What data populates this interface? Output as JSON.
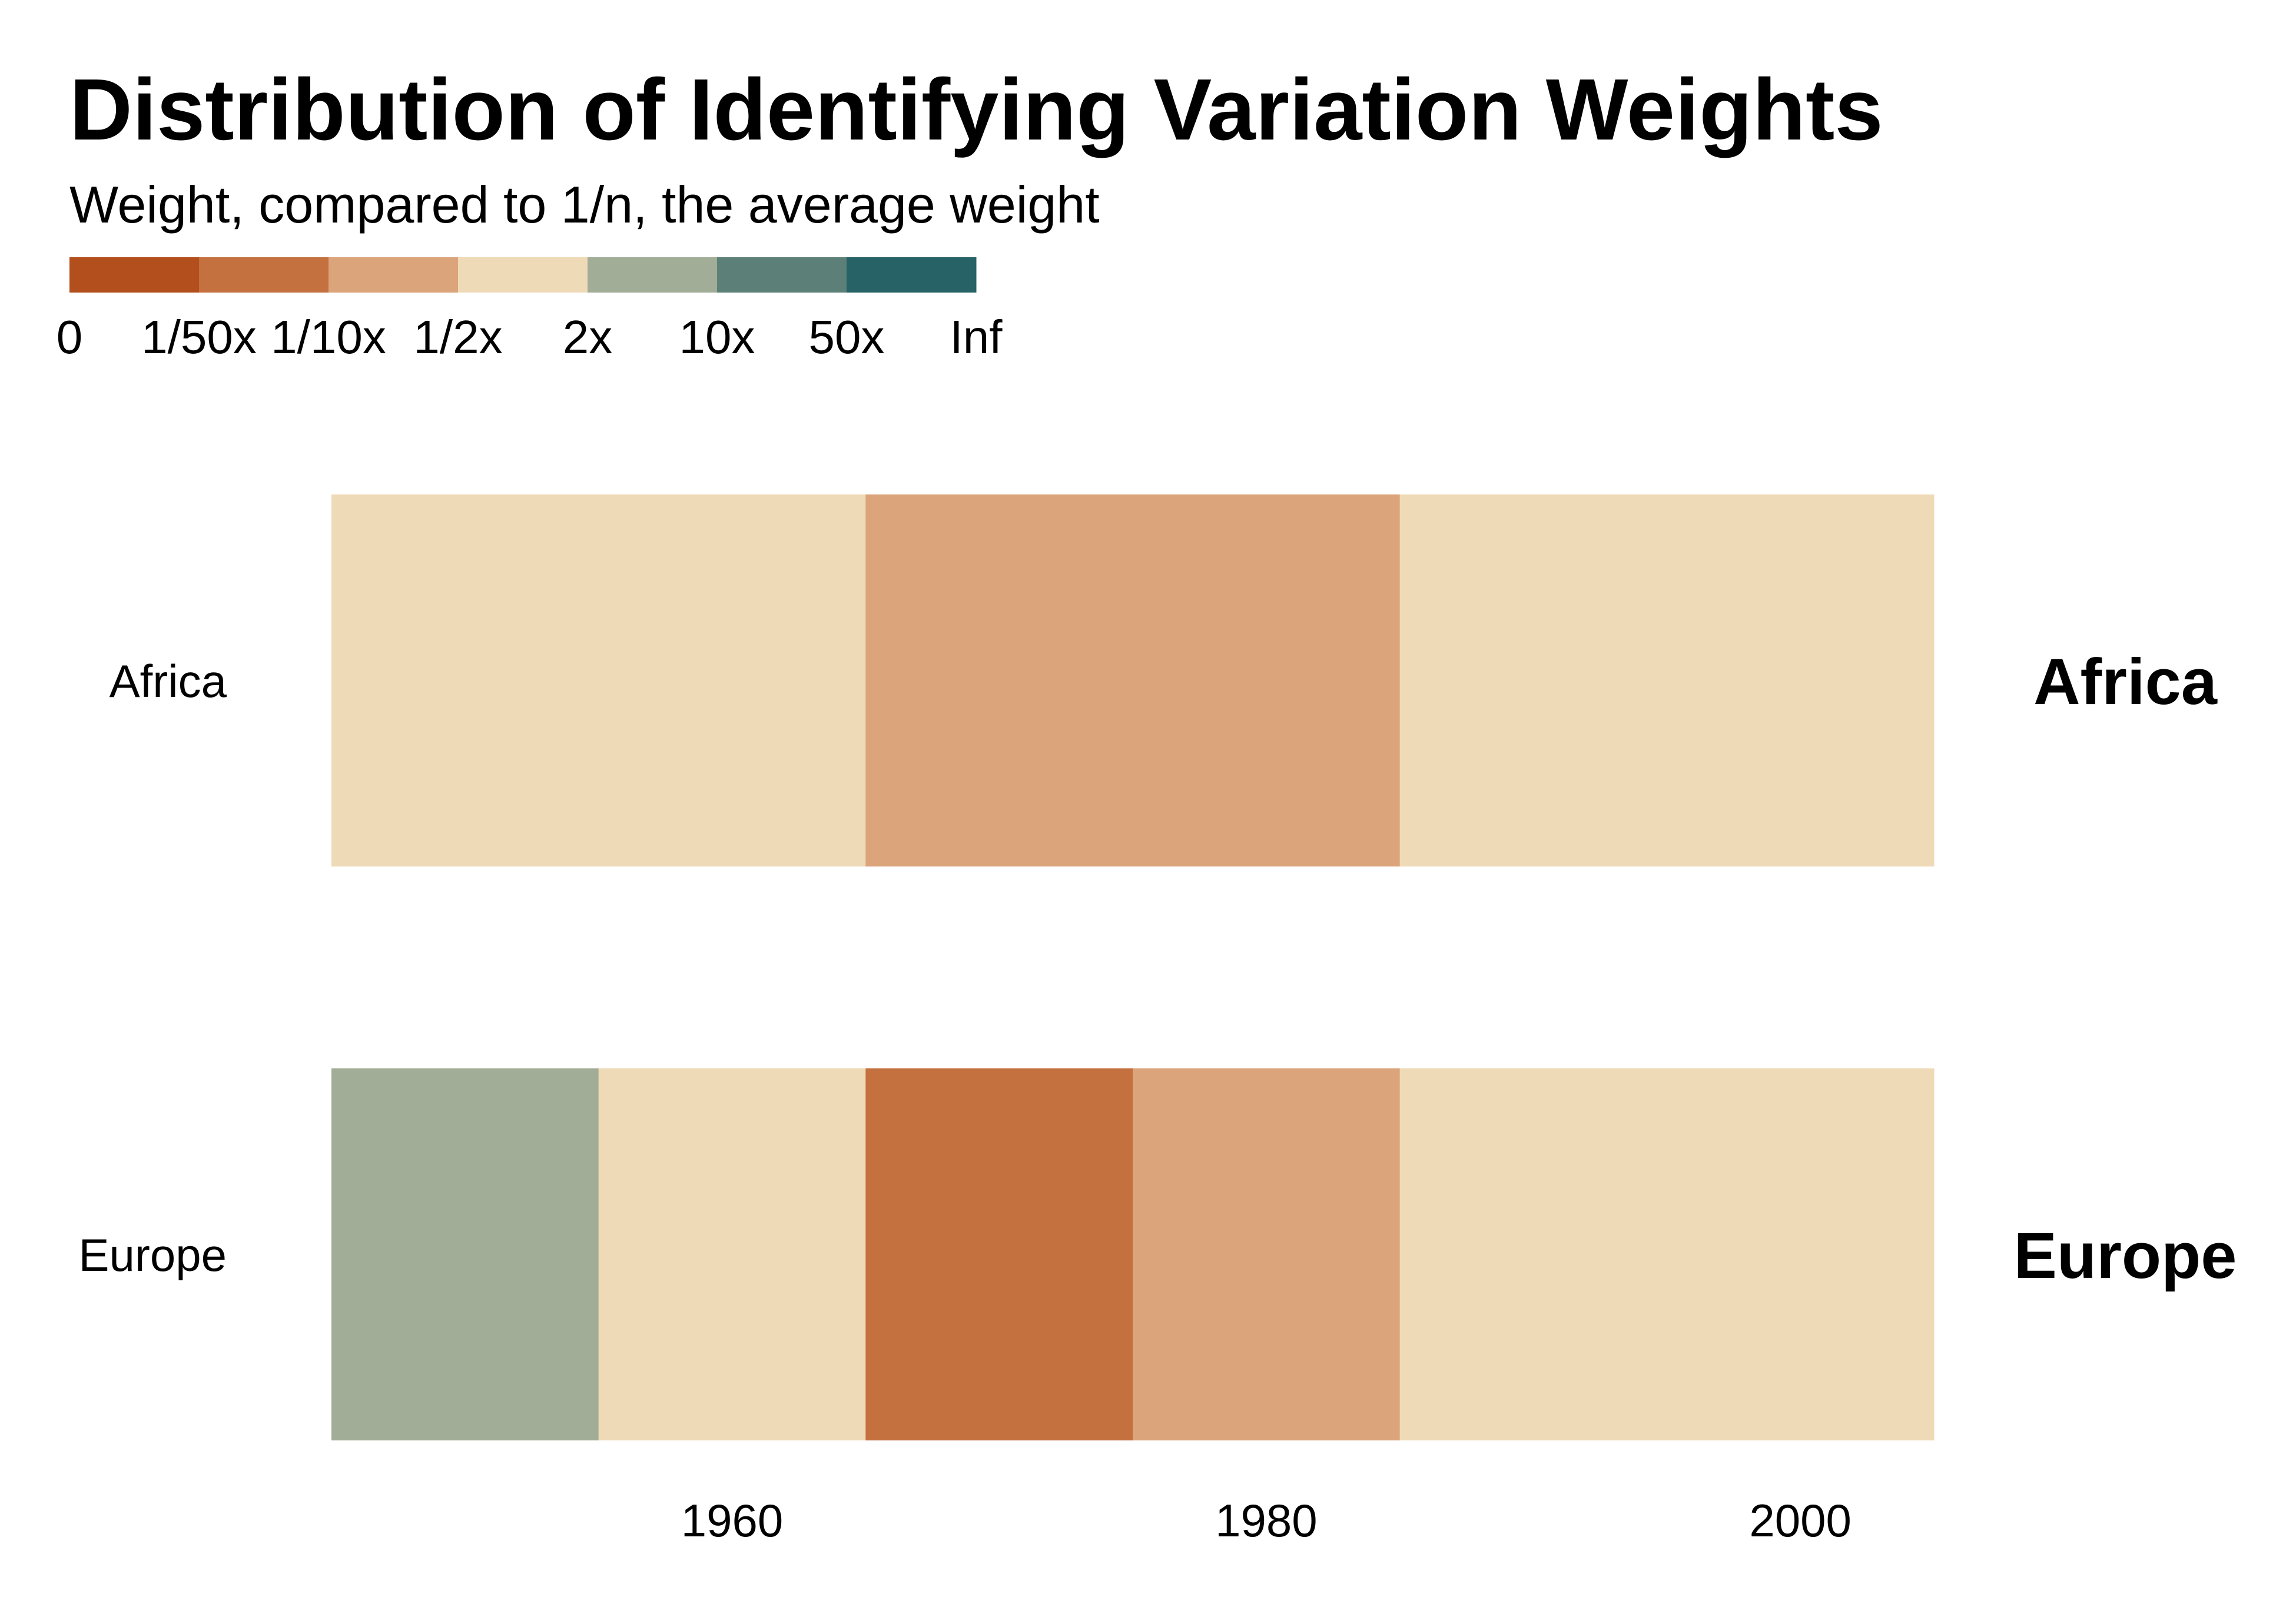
{
  "chart_data": {
    "type": "heatmap",
    "title": "Distribution of Identifying Variation Weights",
    "subtitle": "Weight, compared to 1/n, the average weight",
    "legend": {
      "bins": [
        {
          "label_start": "0",
          "color": "#b24f1c"
        },
        {
          "label_start": "1/50x",
          "color": "#c4703f"
        },
        {
          "label_start": "1/10x",
          "color": "#dca47b"
        },
        {
          "label_start": "1/2x",
          "color": "#efdab7"
        },
        {
          "label_start": "2x",
          "color": "#a1ad97"
        },
        {
          "label_start": "10x",
          "color": "#5c8077"
        },
        {
          "label_start": "50x",
          "color": "#266266"
        }
      ],
      "labels": [
        "0",
        "1/50x",
        "1/10x",
        "1/2x",
        "2x",
        "10x",
        "50x",
        "Inf"
      ]
    },
    "x_axis": {
      "range": [
        1945,
        2005
      ],
      "ticks": [
        {
          "value": 1960,
          "label": "1960"
        },
        {
          "value": 1980,
          "label": "1980"
        },
        {
          "value": 2000,
          "label": "2000"
        }
      ]
    },
    "rows": [
      {
        "label": "Africa",
        "facet_label": "Africa",
        "segments": [
          {
            "start": 1945,
            "end": 1965,
            "category": "1/2x-2x",
            "color": "#efdab7"
          },
          {
            "start": 1965,
            "end": 1985,
            "category": "1/10x-1/2x",
            "color": "#dca47b"
          },
          {
            "start": 1985,
            "end": 2005,
            "category": "1/2x-2x",
            "color": "#efdab7"
          }
        ]
      },
      {
        "label": "Europe",
        "facet_label": "Europe",
        "segments": [
          {
            "start": 1945,
            "end": 1955,
            "category": "2x-10x",
            "color": "#a1ad97"
          },
          {
            "start": 1955,
            "end": 1965,
            "category": "1/2x-2x",
            "color": "#efdab7"
          },
          {
            "start": 1965,
            "end": 1975,
            "category": "1/50x-1/10x",
            "color": "#c4703f"
          },
          {
            "start": 1975,
            "end": 1985,
            "category": "1/10x-1/2x",
            "color": "#dca47b"
          },
          {
            "start": 1985,
            "end": 2005,
            "category": "1/2x-2x",
            "color": "#efdab7"
          }
        ]
      }
    ]
  }
}
